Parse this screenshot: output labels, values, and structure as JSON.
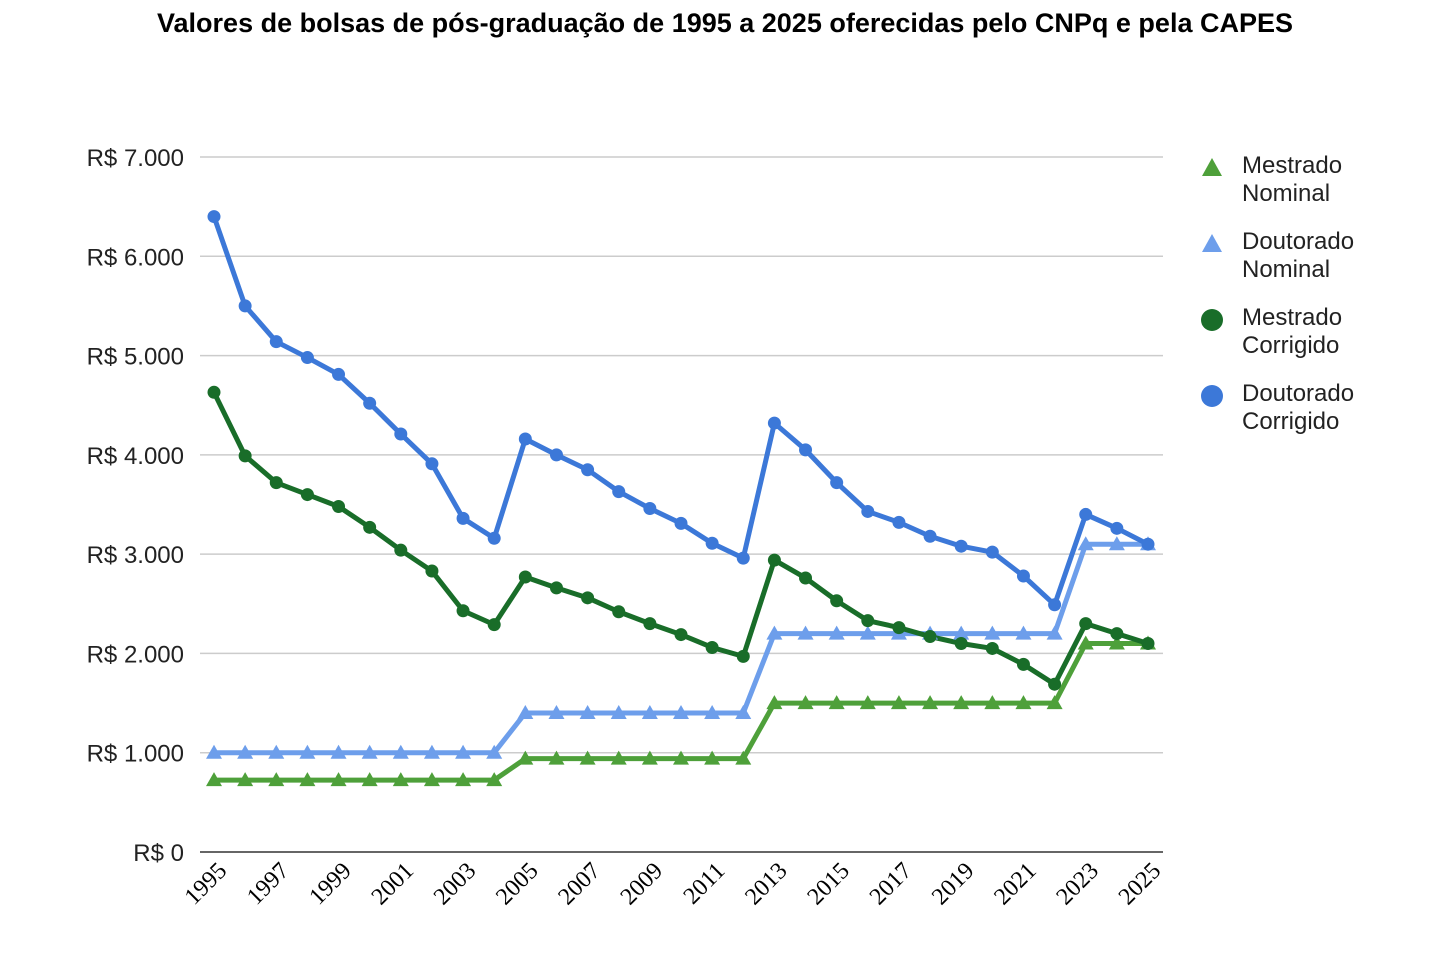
{
  "chart_data": {
    "type": "line",
    "title": "Valores de bolsas de pós-graduação de 1995 a 2025 oferecidas pelo CNPq e pela CAPES",
    "xlabel": "",
    "ylabel": "",
    "x": [
      1995,
      1996,
      1997,
      1998,
      1999,
      2000,
      2001,
      2002,
      2003,
      2004,
      2005,
      2006,
      2007,
      2008,
      2009,
      2010,
      2011,
      2012,
      2013,
      2014,
      2015,
      2016,
      2017,
      2018,
      2019,
      2020,
      2021,
      2022,
      2023,
      2024,
      2025
    ],
    "x_tick_labels": [
      "1995",
      "1997",
      "1999",
      "2001",
      "2003",
      "2005",
      "2007",
      "2009",
      "2011",
      "2013",
      "2015",
      "2017",
      "2019",
      "2021",
      "2023",
      "2025"
    ],
    "ylim": [
      0,
      7000
    ],
    "y_tick_labels": [
      "R$ 0",
      "R$ 1.000",
      "R$ 2.000",
      "R$ 3.000",
      "R$ 4.000",
      "R$ 5.000",
      "R$ 6.000",
      "R$ 7.000"
    ],
    "y_tick_values": [
      0,
      1000,
      2000,
      3000,
      4000,
      5000,
      6000,
      7000
    ],
    "grid": true,
    "legend_position": "right",
    "series": [
      {
        "name": "Mestrado Nominal",
        "marker": "triangle",
        "color": "#4ea03a",
        "values": [
          724,
          724,
          724,
          724,
          724,
          724,
          724,
          724,
          724,
          724,
          940,
          940,
          940,
          940,
          940,
          940,
          940,
          940,
          1500,
          1500,
          1500,
          1500,
          1500,
          1500,
          1500,
          1500,
          1500,
          1500,
          2100,
          2100,
          2100
        ]
      },
      {
        "name": "Doutorado Nominal",
        "marker": "triangle",
        "color": "#6d9eeb",
        "values": [
          1000,
          1000,
          1000,
          1000,
          1000,
          1000,
          1000,
          1000,
          1000,
          1000,
          1400,
          1400,
          1400,
          1400,
          1400,
          1400,
          1400,
          1400,
          2200,
          2200,
          2200,
          2200,
          2200,
          2200,
          2200,
          2200,
          2200,
          2200,
          3100,
          3100,
          3100
        ]
      },
      {
        "name": "Mestrado Corrigido",
        "marker": "circle",
        "color": "#196d29",
        "values": [
          4630,
          3990,
          3720,
          3600,
          3480,
          3270,
          3040,
          2830,
          2430,
          2290,
          2770,
          2660,
          2560,
          2420,
          2300,
          2190,
          2060,
          1970,
          2940,
          2760,
          2530,
          2330,
          2260,
          2170,
          2100,
          2050,
          1890,
          1690,
          2300,
          2200,
          2100
        ]
      },
      {
        "name": "Doutorado Corrigido",
        "marker": "circle",
        "color": "#3c78d8",
        "values": [
          6400,
          5500,
          5140,
          4980,
          4810,
          4520,
          4210,
          3910,
          3360,
          3160,
          4160,
          4000,
          3850,
          3630,
          3460,
          3310,
          3110,
          2960,
          4320,
          4050,
          3720,
          3430,
          3320,
          3180,
          3080,
          3020,
          2780,
          2490,
          3400,
          3260,
          3100
        ]
      }
    ]
  }
}
